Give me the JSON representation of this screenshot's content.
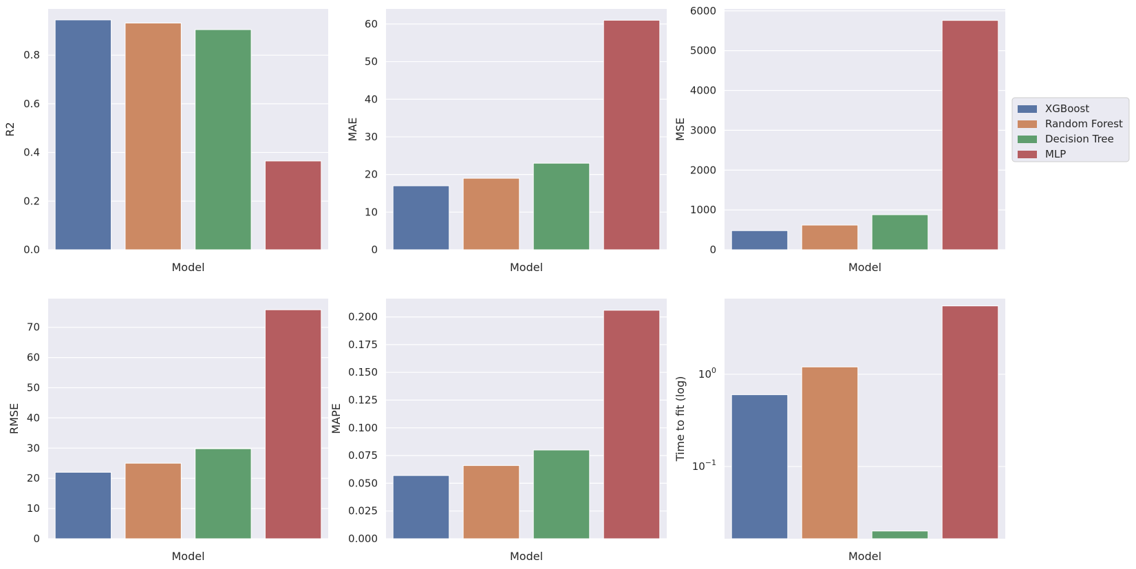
{
  "legend": {
    "placement": "right, outside",
    "entries": [
      "XGBoost",
      "Random Forest",
      "Decision Tree",
      "MLP"
    ]
  },
  "colors": {
    "XGBoost": "#5975a4",
    "Random Forest": "#cc8963",
    "Decision Tree": "#5f9e6e",
    "MLP": "#b55d60",
    "plot_background": "#eaeaf2",
    "grid": "#ffffff"
  },
  "chart_data": [
    {
      "type": "bar",
      "xlabel": "Model",
      "ylabel": "R2",
      "categories": [
        "XGBoost",
        "Random Forest",
        "Decision Tree",
        "MLP"
      ],
      "values": [
        0.945,
        0.932,
        0.905,
        0.365
      ],
      "ylim": [
        0,
        0.99
      ],
      "yticks": [
        0.0,
        0.2,
        0.4,
        0.6,
        0.8
      ],
      "ytick_labels": [
        "0.0",
        "0.2",
        "0.4",
        "0.6",
        "0.8"
      ],
      "yscale": "linear",
      "grid": true
    },
    {
      "type": "bar",
      "xlabel": "Model",
      "ylabel": "MAE",
      "categories": [
        "XGBoost",
        "Random Forest",
        "Decision Tree",
        "MLP"
      ],
      "values": [
        17.0,
        19.0,
        23.0,
        61.0
      ],
      "ylim": [
        0,
        64
      ],
      "yticks": [
        0,
        10,
        20,
        30,
        40,
        50,
        60
      ],
      "ytick_labels": [
        "0",
        "10",
        "20",
        "30",
        "40",
        "50",
        "60"
      ],
      "yscale": "linear",
      "grid": true
    },
    {
      "type": "bar",
      "xlabel": "Model",
      "ylabel": "MSE",
      "categories": [
        "XGBoost",
        "Random Forest",
        "Decision Tree",
        "MLP"
      ],
      "values": [
        480,
        620,
        880,
        5760
      ],
      "ylim": [
        0,
        6048
      ],
      "yticks": [
        0,
        1000,
        2000,
        3000,
        4000,
        5000,
        6000
      ],
      "ytick_labels": [
        "0",
        "1000",
        "2000",
        "3000",
        "4000",
        "5000",
        "6000"
      ],
      "yscale": "linear",
      "grid": true
    },
    {
      "type": "bar",
      "xlabel": "Model",
      "ylabel": "RMSE",
      "categories": [
        "XGBoost",
        "Random Forest",
        "Decision Tree",
        "MLP"
      ],
      "values": [
        22.0,
        25.0,
        29.8,
        75.8
      ],
      "ylim": [
        0,
        79.5
      ],
      "yticks": [
        0,
        10,
        20,
        30,
        40,
        50,
        60,
        70
      ],
      "ytick_labels": [
        "0",
        "10",
        "20",
        "30",
        "40",
        "50",
        "60",
        "70"
      ],
      "yscale": "linear",
      "grid": true
    },
    {
      "type": "bar",
      "xlabel": "Model",
      "ylabel": "MAPE",
      "categories": [
        "XGBoost",
        "Random Forest",
        "Decision Tree",
        "MLP"
      ],
      "values": [
        0.057,
        0.066,
        0.08,
        0.206
      ],
      "ylim": [
        0,
        0.2165
      ],
      "yticks": [
        0.0,
        0.025,
        0.05,
        0.075,
        0.1,
        0.125,
        0.15,
        0.175,
        0.2
      ],
      "ytick_labels": [
        "0.000",
        "0.025",
        "0.050",
        "0.075",
        "0.100",
        "0.125",
        "0.150",
        "0.175",
        "0.200"
      ],
      "yscale": "linear",
      "grid": true
    },
    {
      "type": "bar",
      "xlabel": "Model",
      "ylabel": "Time to fit (log)",
      "categories": [
        "XGBoost",
        "Random Forest",
        "Decision Tree",
        "MLP"
      ],
      "values": [
        0.6,
        1.2,
        0.02,
        5.5
      ],
      "ylim": [
        0.0165,
        6.6
      ],
      "yticks": [
        0.1,
        1.0
      ],
      "ytick_labels": [
        {
          "base": "10",
          "exp": "−1"
        },
        {
          "base": "10",
          "exp": "0"
        }
      ],
      "yscale": "log",
      "grid": true
    }
  ]
}
